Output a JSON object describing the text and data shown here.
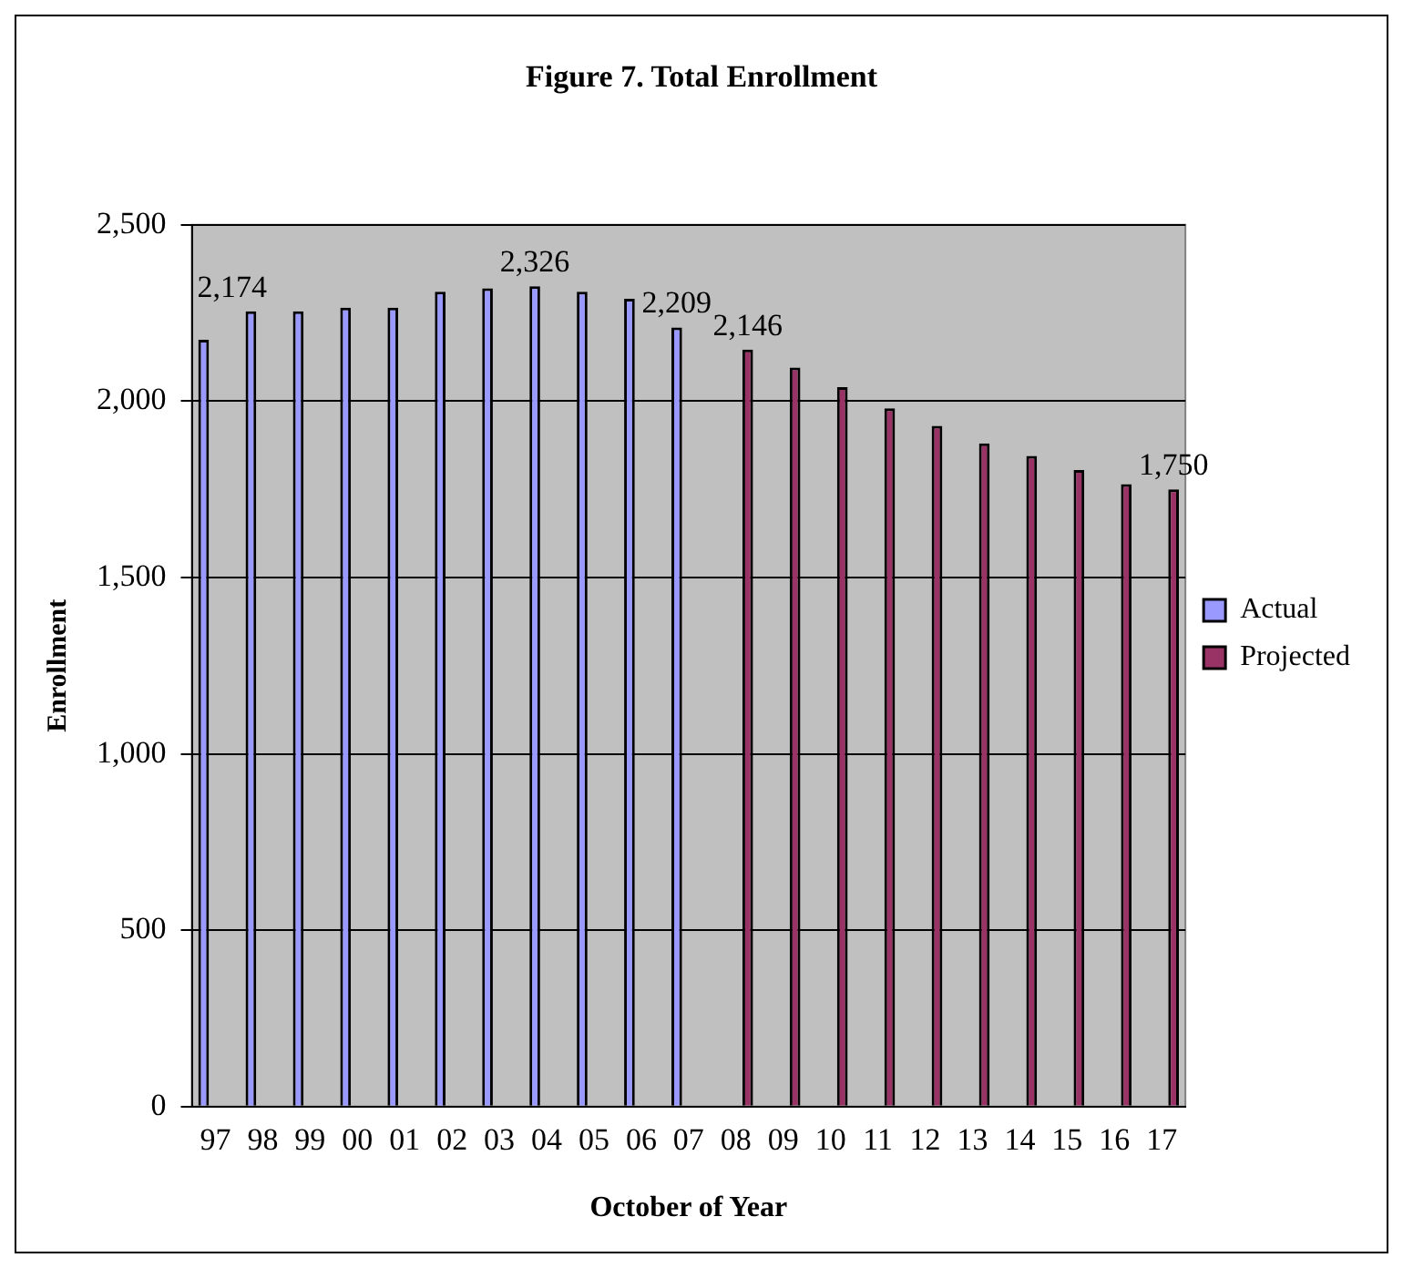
{
  "chart_data": {
    "type": "bar",
    "title": "Figure 7. Total Enrollment",
    "xlabel": "October of Year",
    "ylabel": "Enrollment",
    "categories": [
      "97",
      "98",
      "99",
      "00",
      "01",
      "02",
      "03",
      "04",
      "05",
      "06",
      "07",
      "08",
      "09",
      "10",
      "11",
      "12",
      "13",
      "14",
      "15",
      "16",
      "17"
    ],
    "series": [
      {
        "name": "Actual",
        "color": "#9999ff",
        "values": [
          2174,
          2255,
          2255,
          2265,
          2265,
          2310,
          2320,
          2326,
          2310,
          2290,
          2209,
          null,
          null,
          null,
          null,
          null,
          null,
          null,
          null,
          null,
          null
        ],
        "value_labels": [
          "2,174",
          null,
          null,
          null,
          null,
          null,
          null,
          "2,326",
          null,
          null,
          "2,209",
          null,
          null,
          null,
          null,
          null,
          null,
          null,
          null,
          null,
          null
        ]
      },
      {
        "name": "Projected",
        "color": "#993366",
        "values": [
          null,
          null,
          null,
          null,
          null,
          null,
          null,
          null,
          null,
          null,
          null,
          2146,
          2095,
          2040,
          1980,
          1930,
          1880,
          1845,
          1805,
          1765,
          1750
        ],
        "value_labels": [
          null,
          null,
          null,
          null,
          null,
          null,
          null,
          null,
          null,
          null,
          null,
          "2,146",
          null,
          null,
          null,
          null,
          null,
          null,
          null,
          null,
          "1,750"
        ]
      }
    ],
    "ylim": [
      0,
      2500
    ],
    "yticks": [
      {
        "value": 0,
        "label": "0"
      },
      {
        "value": 500,
        "label": "500"
      },
      {
        "value": 1000,
        "label": "1,000"
      },
      {
        "value": 1500,
        "label": "1,500"
      },
      {
        "value": 2000,
        "label": "2,000"
      },
      {
        "value": 2500,
        "label": "2,500"
      }
    ],
    "grid": "y",
    "legend": "right"
  }
}
